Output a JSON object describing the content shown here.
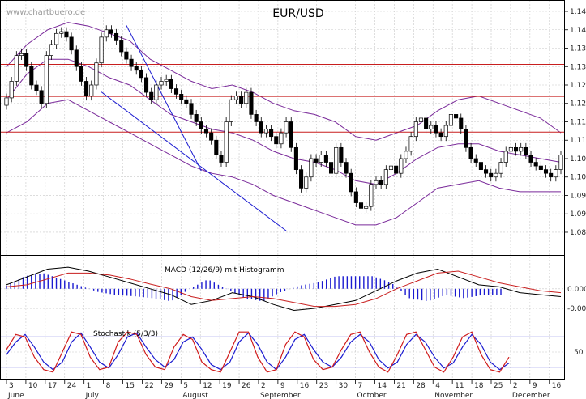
{
  "watermark": "www.chartbuero.de",
  "chart_data": {
    "type": "candlestick",
    "title": "EUR/USD",
    "y_ticks": [
      1.085,
      1.09,
      1.095,
      1.1,
      1.105,
      1.11,
      1.115,
      1.12,
      1.125,
      1.13,
      1.135,
      1.14,
      1.145
    ],
    "ylim": [
      1.0795,
      1.1472
    ],
    "resistance_levels": [
      1.1306,
      1.1219,
      1.1122
    ],
    "channel_upper": [
      [
        24,
        1.1412
      ],
      [
        39,
        1.1017
      ]
    ],
    "channel_lower": [
      [
        19,
        1.1231
      ],
      [
        56,
        1.0854
      ]
    ],
    "day_ticks": [
      "3",
      "10",
      "17",
      "24",
      "1",
      "8",
      "15",
      "22",
      "29",
      "5",
      "12",
      "19",
      "26",
      "2",
      "9",
      "16",
      "23",
      "30",
      "7",
      "14",
      "21",
      "28",
      "4",
      "11",
      "18",
      "25",
      "2",
      "9",
      "16"
    ],
    "month_labels": [
      {
        "label": "June",
        "at_day": 0
      },
      {
        "label": "July",
        "at_day": 4
      },
      {
        "label": "August",
        "at_day": 9
      },
      {
        "label": "September",
        "at_day": 13
      },
      {
        "label": "October",
        "at_day": 18
      },
      {
        "label": "November",
        "at_day": 22
      },
      {
        "label": "December",
        "at_day": 26
      }
    ],
    "close": [
      1.1215,
      1.126,
      1.133,
      1.1335,
      1.13,
      1.125,
      1.1235,
      1.12,
      1.133,
      1.136,
      1.139,
      1.1395,
      1.138,
      1.1345,
      1.13,
      1.126,
      1.122,
      1.125,
      1.131,
      1.138,
      1.14,
      1.139,
      1.137,
      1.134,
      1.132,
      1.13,
      1.129,
      1.127,
      1.123,
      1.121,
      1.125,
      1.126,
      1.1265,
      1.124,
      1.1225,
      1.121,
      1.12,
      1.117,
      1.115,
      1.113,
      1.112,
      1.11,
      1.106,
      1.104,
      1.115,
      1.121,
      1.122,
      1.12,
      1.123,
      1.117,
      1.115,
      1.112,
      1.113,
      1.111,
      1.109,
      1.112,
      1.115,
      1.108,
      1.102,
      1.097,
      1.1,
      1.105,
      1.104,
      1.106,
      1.104,
      1.101,
      1.108,
      1.104,
      1.101,
      1.096,
      1.093,
      1.0915,
      1.092,
      1.098,
      1.099,
      1.098,
      1.102,
      1.103,
      1.101,
      1.105,
      1.107,
      1.111,
      1.115,
      1.116,
      1.113,
      1.114,
      1.112,
      1.111,
      1.114,
      1.117,
      1.116,
      1.113,
      1.108,
      1.105,
      1.104,
      1.102,
      1.101,
      1.1,
      1.101,
      1.104,
      1.107,
      1.108,
      1.107,
      1.108,
      1.106,
      1.104,
      1.103,
      1.102,
      1.101,
      1.1,
      1.102,
      1.106
    ],
    "bollinger_upper": [
      1.13,
      1.136,
      1.14,
      1.142,
      1.141,
      1.139,
      1.137,
      1.132,
      1.129,
      1.126,
      1.124,
      1.125,
      1.123,
      1.12,
      1.118,
      1.117,
      1.115,
      1.111,
      1.11,
      1.112,
      1.114,
      1.118,
      1.121,
      1.122,
      1.12,
      1.118,
      1.116,
      1.112
    ],
    "bollinger_mid": [
      1.121,
      1.128,
      1.132,
      1.132,
      1.13,
      1.127,
      1.125,
      1.121,
      1.117,
      1.115,
      1.113,
      1.112,
      1.11,
      1.107,
      1.105,
      1.104,
      1.102,
      1.099,
      1.098,
      1.101,
      1.105,
      1.108,
      1.109,
      1.109,
      1.107,
      1.106,
      1.105,
      1.104
    ],
    "bollinger_lower": [
      1.112,
      1.115,
      1.12,
      1.121,
      1.118,
      1.115,
      1.112,
      1.109,
      1.106,
      1.103,
      1.101,
      1.1,
      1.098,
      1.095,
      1.093,
      1.091,
      1.089,
      1.087,
      1.087,
      1.089,
      1.093,
      1.097,
      1.098,
      1.099,
      1.097,
      1.096,
      1.096,
      1.096
    ],
    "macd": {
      "label": "MACD (12/26/9) mit Histogramm",
      "y_ticks": [
        0.0,
        -0.005
      ],
      "ylim": [
        -0.0085,
        0.008
      ],
      "macd_line": [
        0.001,
        0.003,
        0.005,
        0.0055,
        0.0045,
        0.003,
        0.0015,
        0.0,
        -0.0015,
        -0.004,
        -0.003,
        -0.001,
        -0.002,
        -0.004,
        -0.0055,
        -0.005,
        -0.004,
        -0.003,
        -0.0005,
        0.002,
        0.004,
        0.005,
        0.003,
        0.001,
        0.0005,
        -0.001,
        -0.0015,
        -0.002
      ],
      "signal_line": [
        0.0005,
        0.001,
        0.0025,
        0.004,
        0.004,
        0.0035,
        0.0025,
        0.0012,
        0.0,
        -0.002,
        -0.003,
        -0.0025,
        -0.002,
        -0.0025,
        -0.0035,
        -0.0045,
        -0.0045,
        -0.004,
        -0.0025,
        0.0,
        0.002,
        0.004,
        0.0045,
        0.003,
        0.0015,
        0.0005,
        -0.0005,
        -0.001
      ],
      "histogram_label": "Histogramm"
    },
    "stochastic": {
      "label": "Stochastik (5/3/3)",
      "y_ticks": [
        50
      ],
      "ylim": [
        0,
        100
      ],
      "upper_band": 80,
      "lower_band": 20,
      "k_line": [
        55,
        85,
        80,
        40,
        15,
        10,
        50,
        90,
        85,
        40,
        15,
        20,
        70,
        90,
        85,
        45,
        20,
        15,
        60,
        85,
        75,
        30,
        15,
        10,
        50,
        90,
        90,
        40,
        10,
        15,
        65,
        90,
        80,
        35,
        15,
        20,
        55,
        85,
        90,
        50,
        20,
        10,
        45,
        85,
        90,
        55,
        20,
        10,
        40,
        80,
        90,
        45,
        15,
        10,
        40
      ],
      "d_line": [
        45,
        70,
        85,
        60,
        30,
        15,
        30,
        70,
        88,
        60,
        30,
        18,
        45,
        80,
        88,
        60,
        35,
        20,
        35,
        70,
        80,
        55,
        25,
        15,
        30,
        70,
        88,
        65,
        30,
        15,
        40,
        75,
        85,
        55,
        30,
        20,
        40,
        70,
        85,
        70,
        35,
        18,
        30,
        65,
        85,
        70,
        40,
        18,
        28,
        60,
        85,
        65,
        30,
        15,
        28
      ]
    }
  }
}
